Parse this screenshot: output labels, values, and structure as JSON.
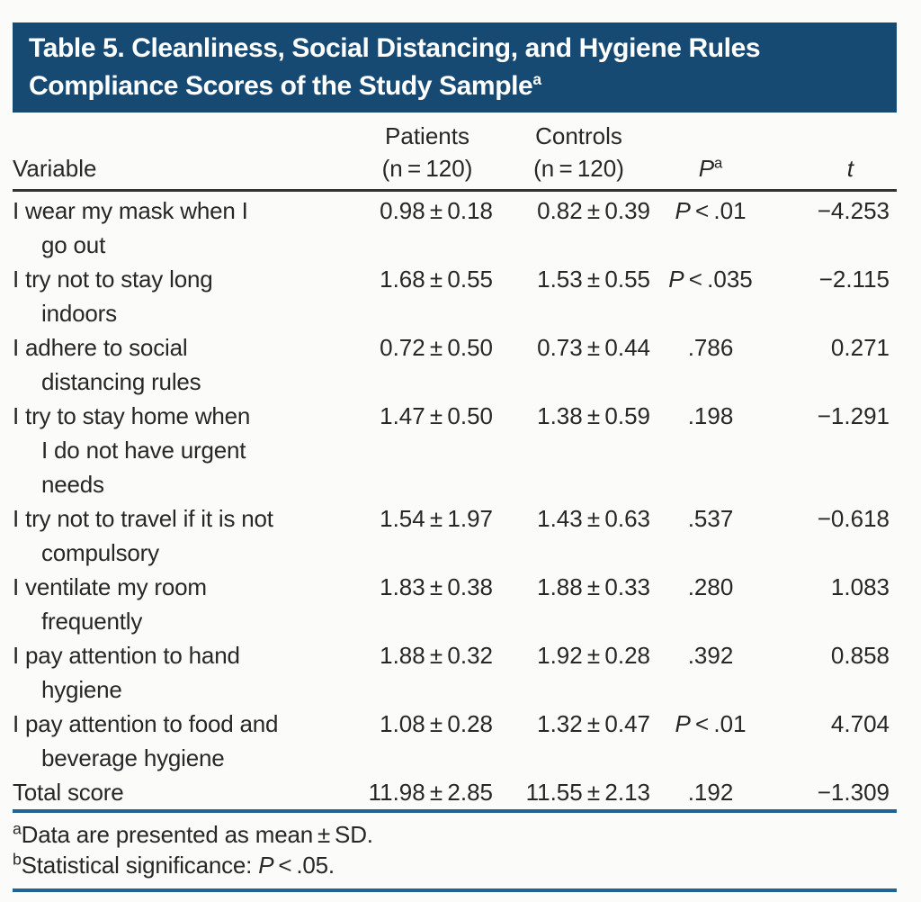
{
  "table": {
    "title": {
      "line1": "Table 5. Cleanliness, Social Distancing, and Hygiene Rules",
      "line2": "Compliance Scores of the Study Sample",
      "superscript": "a"
    },
    "columns": {
      "variable": "Variable",
      "patients_line1": "Patients",
      "patients_line2": "(n = 120)",
      "controls_line1": "Controls",
      "controls_line2": "(n = 120)",
      "p_label": "P",
      "p_superscript": "a",
      "t_label": "t"
    },
    "rows": [
      {
        "variable": "I wear my mask when I\ngo out",
        "patients": "0.98 ± 0.18",
        "controls": "0.82 ± 0.39",
        "p_italic": "P",
        "p_rest": " < .01",
        "t": "−4.253"
      },
      {
        "variable": "I try not to stay long\nindoors",
        "patients": "1.68 ± 0.55",
        "controls": "1.53 ± 0.55",
        "p_italic": "P",
        "p_rest": " < .035",
        "t": "−2.115"
      },
      {
        "variable": "I adhere to social\ndistancing rules",
        "patients": "0.72 ± 0.50",
        "controls": "0.73 ± 0.44",
        "p_italic": "",
        "p_rest": ".786",
        "t": "0.271"
      },
      {
        "variable": "I try to stay home when\nI do not have urgent\nneeds",
        "patients": "1.47 ± 0.50",
        "controls": "1.38 ± 0.59",
        "p_italic": "",
        "p_rest": ".198",
        "t": "−1.291"
      },
      {
        "variable": "I try not to travel if it is not\ncompulsory",
        "patients": "1.54 ± 1.97",
        "controls": "1.43 ± 0.63",
        "p_italic": "",
        "p_rest": ".537",
        "t": "−0.618"
      },
      {
        "variable": "I ventilate my room\nfrequently",
        "patients": "1.83 ± 0.38",
        "controls": "1.88 ± 0.33",
        "p_italic": "",
        "p_rest": ".280",
        "t": "1.083"
      },
      {
        "variable": "I pay attention to hand\nhygiene",
        "patients": "1.88 ± 0.32",
        "controls": "1.92 ± 0.28",
        "p_italic": "",
        "p_rest": ".392",
        "t": "0.858"
      },
      {
        "variable": "I pay attention to food and\nbeverage hygiene",
        "patients": "1.08 ± 0.28",
        "controls": "1.32 ± 0.47",
        "p_italic": "P",
        "p_rest": " < .01",
        "t": "4.704"
      },
      {
        "variable": "Total score",
        "patients": "11.98 ± 2.85",
        "controls": "11.55 ± 2.13",
        "p_italic": "",
        "p_rest": ".192",
        "t": "−1.309"
      }
    ],
    "footnotes": [
      {
        "marker": "a",
        "text": "Data are presented as mean ± SD.",
        "italic": "",
        "rest": ""
      },
      {
        "marker": "b",
        "text": "Statistical significance: ",
        "italic": "P",
        "rest": " < .05."
      }
    ],
    "colors": {
      "banner_blue": "#164a73",
      "rule_blue": "#1f6495",
      "rule_dark": "#333333",
      "title_text": "#ffffff",
      "body_text": "#272727"
    }
  }
}
